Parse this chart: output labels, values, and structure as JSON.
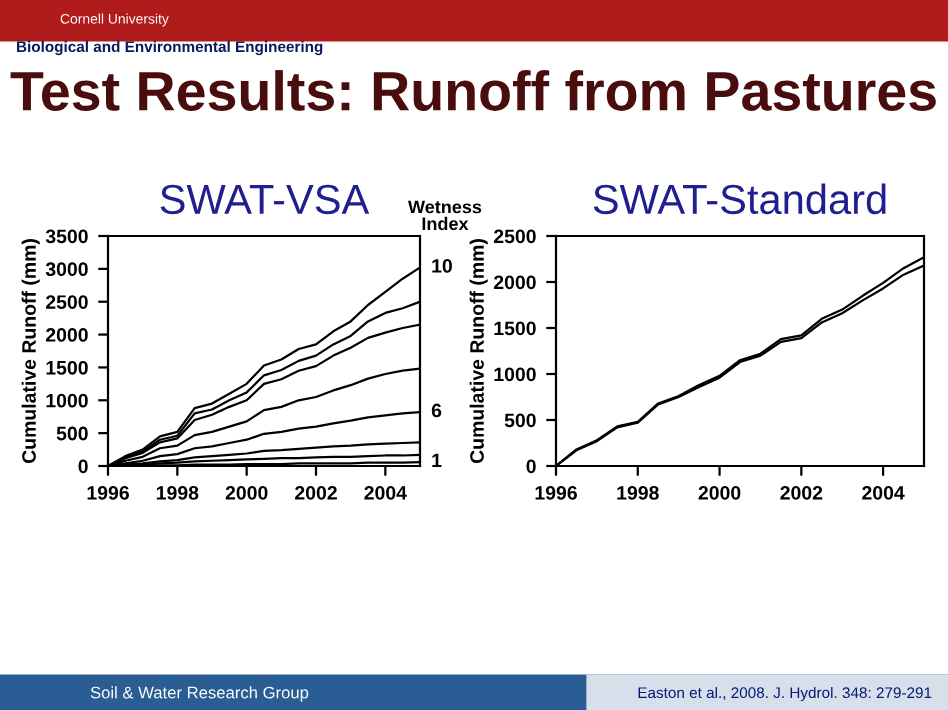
{
  "chart_data": [
    {
      "type": "line",
      "title": "SWAT-VSA",
      "ylabel": "Cumulative Runoff (mm)",
      "legend_title": "Wetness Index",
      "annotations": [
        "Cornell University",
        "Biological and Environmental Engineering",
        "Test Results: Runoff from Pastures",
        "Soil & Water Research Group",
        "Easton et al., 2008. J. Hydrol. 348: 279-291"
      ],
      "x": [
        1996,
        1996.5,
        1997,
        1997.5,
        1998,
        1998.5,
        1999,
        1999.5,
        2000,
        2000.5,
        2001,
        2001.5,
        2002,
        2002.5,
        2003,
        2003.5,
        2004,
        2004.5,
        2005
      ],
      "series": [
        {
          "name": "10",
          "color": "#000000",
          "values": [
            0,
            150,
            250,
            450,
            520,
            880,
            950,
            1100,
            1250,
            1530,
            1620,
            1780,
            1850,
            2050,
            2200,
            2450,
            2650,
            2850,
            3020
          ]
        },
        {
          "color": "#000000",
          "values": [
            0,
            130,
            220,
            400,
            460,
            800,
            860,
            1000,
            1120,
            1380,
            1460,
            1600,
            1680,
            1850,
            1980,
            2200,
            2330,
            2400,
            2500
          ]
        },
        {
          "color": "#000000",
          "values": [
            0,
            120,
            200,
            360,
            420,
            700,
            780,
            900,
            1000,
            1250,
            1320,
            1450,
            1520,
            1680,
            1800,
            1950,
            2030,
            2100,
            2150
          ]
        },
        {
          "color": "#000000",
          "values": [
            0,
            80,
            140,
            270,
            310,
            470,
            520,
            600,
            680,
            850,
            900,
            1000,
            1050,
            1150,
            1230,
            1330,
            1400,
            1450,
            1480
          ]
        },
        {
          "name": "6",
          "color": "#000000",
          "values": [
            0,
            40,
            80,
            150,
            180,
            270,
            300,
            350,
            400,
            490,
            520,
            570,
            600,
            650,
            690,
            740,
            770,
            800,
            820
          ]
        },
        {
          "color": "#000000",
          "values": [
            0,
            20,
            40,
            70,
            90,
            130,
            150,
            170,
            190,
            230,
            240,
            260,
            280,
            300,
            310,
            330,
            340,
            350,
            360
          ]
        },
        {
          "color": "#000000",
          "values": [
            0,
            10,
            20,
            40,
            50,
            70,
            80,
            90,
            100,
            110,
            120,
            120,
            130,
            140,
            140,
            150,
            160,
            160,
            170
          ]
        },
        {
          "name": "1",
          "color": "#000000",
          "values": [
            0,
            0,
            10,
            10,
            10,
            20,
            20,
            20,
            30,
            30,
            30,
            40,
            40,
            40,
            40,
            50,
            50,
            50,
            60
          ]
        }
      ],
      "xlim": [
        1996,
        2005
      ],
      "xticks": [
        1996,
        1998,
        2000,
        2002,
        2004
      ],
      "ylim": [
        0,
        3500
      ],
      "yticks": [
        0,
        500,
        1000,
        1500,
        2000,
        2500,
        3000,
        3500
      ],
      "grid": false,
      "marker": "none",
      "line_style": "solid"
    },
    {
      "type": "line",
      "title": "SWAT-Standard",
      "ylabel": "Cumulative Runoff (mm)",
      "x": [
        1996,
        1996.5,
        1997,
        1997.5,
        1998,
        1998.5,
        1999,
        1999.5,
        2000,
        2000.5,
        2001,
        2001.5,
        2002,
        2002.5,
        2003,
        2003.5,
        2004,
        2004.5,
        2005
      ],
      "series": [
        {
          "color": "#000000",
          "values": [
            0,
            180,
            280,
            430,
            480,
            680,
            760,
            880,
            980,
            1150,
            1220,
            1380,
            1420,
            1600,
            1700,
            1850,
            1990,
            2150,
            2270
          ]
        },
        {
          "color": "#000000",
          "values": [
            0,
            170,
            270,
            420,
            470,
            670,
            750,
            860,
            960,
            1130,
            1200,
            1350,
            1390,
            1560,
            1660,
            1800,
            1930,
            2080,
            2180
          ]
        }
      ],
      "xlim": [
        1996,
        2005
      ],
      "xticks": [
        1996,
        1998,
        2000,
        2002,
        2004
      ],
      "ylim": [
        0,
        2500
      ],
      "yticks": [
        0,
        500,
        1000,
        1500,
        2000,
        2500
      ],
      "grid": false,
      "marker": "none",
      "line_style": "solid"
    }
  ]
}
